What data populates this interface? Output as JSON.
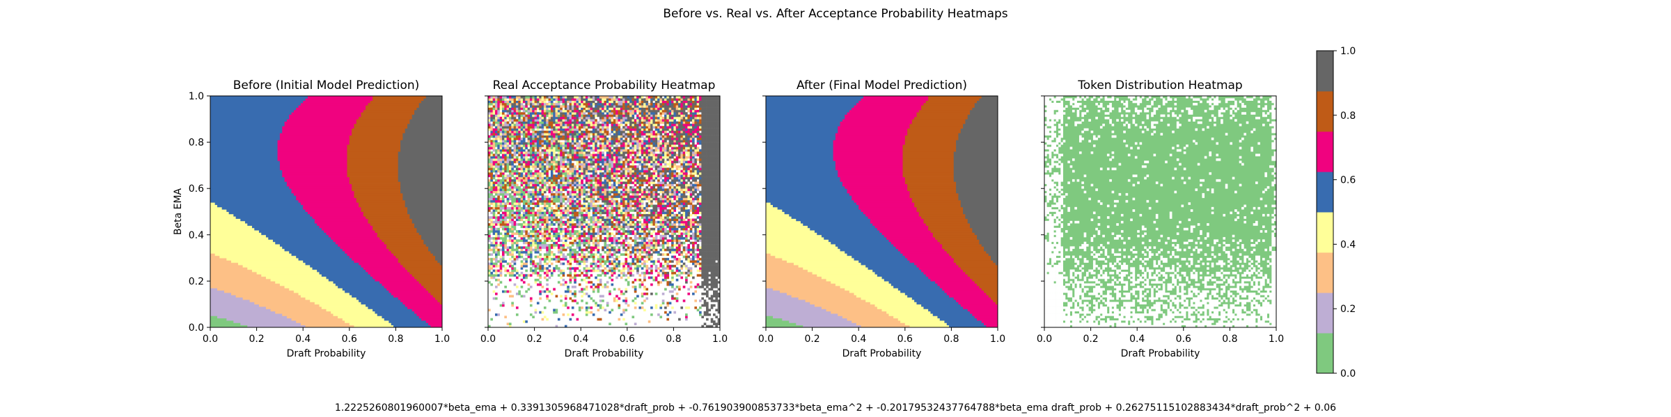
{
  "suptitle": "Before vs. Real vs. After Acceptance Probability Heatmaps",
  "footer_formula": "1.2225260801960007*beta_ema + 0.3391305968471028*draft_prob + -0.761903900853733*beta_ema^2 + -0.20179532437764788*beta_ema draft_prob + 0.26275115102883434*draft_prob^2 + 0.06",
  "chart_data": [
    {
      "type": "heatmap",
      "title": "Before (Initial Model Prediction)",
      "xlabel": "Draft Probability",
      "ylabel": "Beta EMA",
      "xlim": [
        0.0,
        1.0
      ],
      "ylim": [
        0.0,
        1.0
      ],
      "xticks": [
        "0.0",
        "0.2",
        "0.4",
        "0.6",
        "0.8",
        "1.0"
      ],
      "yticks": [
        "0.0",
        "0.2",
        "0.4",
        "0.6",
        "0.8",
        "1.0"
      ],
      "grid_resolution": 100,
      "formula_coefficients": {
        "beta_ema": 1.2225260801960007,
        "draft_prob": 0.3391305968471028,
        "beta_ema^2": -0.761903900853733,
        "beta_ema*draft_prob": -0.20179532437764788,
        "draft_prob^2": 0.26275115102883434,
        "intercept": 0.06
      },
      "colormap": "Accent (8 bins)",
      "vmin": 0.0,
      "vmax": 1.0
    },
    {
      "type": "heatmap",
      "title": "Real Acceptance Probability Heatmap",
      "xlabel": "Draft Probability",
      "ylabel": "",
      "xlim": [
        0.0,
        1.0
      ],
      "ylim": [
        0.0,
        1.0
      ],
      "xticks": [
        "0.0",
        "0.2",
        "0.4",
        "0.6",
        "0.8",
        "1.0"
      ],
      "grid_resolution": 100,
      "notes": "sparse, noisy empirical acceptance rates; empty cells shown white; density high at top, low at bottom",
      "colormap": "Accent (8 bins)",
      "vmin": 0.0,
      "vmax": 1.0
    },
    {
      "type": "heatmap",
      "title": "After (Final Model Prediction)",
      "xlabel": "Draft Probability",
      "ylabel": "",
      "xlim": [
        0.0,
        1.0
      ],
      "ylim": [
        0.0,
        1.0
      ],
      "xticks": [
        "0.0",
        "0.2",
        "0.4",
        "0.6",
        "0.8",
        "1.0"
      ],
      "grid_resolution": 100,
      "formula_coefficients": {
        "beta_ema": 1.2225260801960007,
        "draft_prob": 0.3391305968471028,
        "beta_ema^2": -0.761903900853733,
        "beta_ema*draft_prob": -0.20179532437764788,
        "draft_prob^2": 0.26275115102883434,
        "intercept": 0.06
      },
      "colormap": "Accent (8 bins)",
      "vmin": 0.0,
      "vmax": 1.0
    },
    {
      "type": "heatmap",
      "title": "Token Distribution Heatmap",
      "xlabel": "Draft Probability",
      "ylabel": "",
      "xlim": [
        0.0,
        1.0
      ],
      "ylim": [
        0.0,
        1.0
      ],
      "xticks": [
        "0.0",
        "0.2",
        "0.4",
        "0.6",
        "0.8",
        "1.0"
      ],
      "grid_resolution": 100,
      "notes": "token presence: filled cells green, empty cells white",
      "colormap": "Accent (8 bins)",
      "vmin": 0.0,
      "vmax": 1.0
    }
  ],
  "colorbar": {
    "ticks": [
      "0.0",
      "0.2",
      "0.4",
      "0.6",
      "0.8",
      "1.0"
    ],
    "bins": [
      {
        "range": [
          0.0,
          0.125
        ],
        "color": "#7fc97f"
      },
      {
        "range": [
          0.125,
          0.25
        ],
        "color": "#beaed4"
      },
      {
        "range": [
          0.25,
          0.375
        ],
        "color": "#fdc086"
      },
      {
        "range": [
          0.375,
          0.5
        ],
        "color": "#ffff99"
      },
      {
        "range": [
          0.5,
          0.625
        ],
        "color": "#386cb0"
      },
      {
        "range": [
          0.625,
          0.75
        ],
        "color": "#f0027f"
      },
      {
        "range": [
          0.75,
          0.875
        ],
        "color": "#bf5b17"
      },
      {
        "range": [
          0.875,
          1.0
        ],
        "color": "#666666"
      }
    ]
  }
}
